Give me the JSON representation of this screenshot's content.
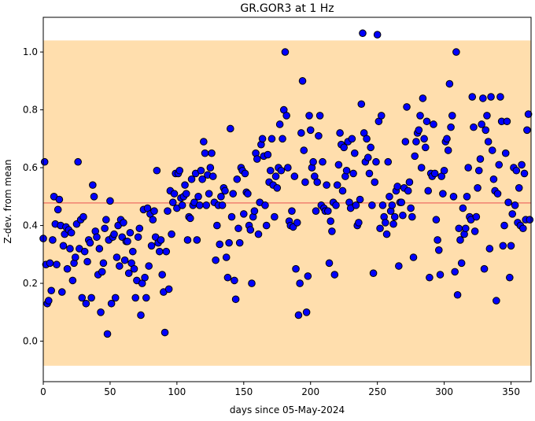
{
  "chart_data": {
    "type": "scatter",
    "title": "GR.GOR3 at 1 Hz",
    "xlabel": "days since 05-May-2024",
    "ylabel": "Z-dev. from mean",
    "xlim": [
      0,
      365
    ],
    "ylim": [
      -0.14,
      1.12
    ],
    "x_ticks": [
      0,
      50,
      100,
      150,
      200,
      250,
      300,
      350
    ],
    "x_tick_labels": [
      "0",
      "50",
      "100",
      "150",
      "200",
      "250",
      "300",
      "350"
    ],
    "y_ticks": [
      0.0,
      0.2,
      0.4,
      0.6,
      0.8,
      1.0
    ],
    "y_tick_labels": [
      "0.0",
      "0.2",
      "0.4",
      "0.6",
      "0.8",
      "1.0"
    ],
    "grid": false,
    "band": {
      "y0": -0.085,
      "y1": 1.04,
      "color": "#ffdead"
    },
    "reference_line": {
      "y": 0.478,
      "color": "#f08070"
    },
    "marker": {
      "fill": "#0000ff",
      "edge": "#000000"
    },
    "points": [
      [
        0,
        0.355
      ],
      [
        1,
        0.62
      ],
      [
        2,
        0.265
      ],
      [
        3,
        0.13
      ],
      [
        4,
        0.14
      ],
      [
        5,
        0.27
      ],
      [
        6,
        0.175
      ],
      [
        7,
        0.35
      ],
      [
        8,
        0.5
      ],
      [
        9,
        0.405
      ],
      [
        10,
        0.265
      ],
      [
        11,
        0.455
      ],
      [
        12,
        0.49
      ],
      [
        13,
        0.4
      ],
      [
        14,
        0.17
      ],
      [
        15,
        0.33
      ],
      [
        16,
        0.37
      ],
      [
        17,
        0.395
      ],
      [
        18,
        0.25
      ],
      [
        19,
        0.385
      ],
      [
        20,
        0.32
      ],
      [
        21,
        0.375
      ],
      [
        22,
        0.21
      ],
      [
        23,
        0.27
      ],
      [
        24,
        0.29
      ],
      [
        25,
        0.405
      ],
      [
        26,
        0.62
      ],
      [
        27,
        0.32
      ],
      [
        28,
        0.42
      ],
      [
        29,
        0.15
      ],
      [
        30,
        0.43
      ],
      [
        31,
        0.31
      ],
      [
        32,
        0.13
      ],
      [
        33,
        0.275
      ],
      [
        34,
        0.35
      ],
      [
        35,
        0.34
      ],
      [
        36,
        0.15
      ],
      [
        37,
        0.54
      ],
      [
        38,
        0.5
      ],
      [
        39,
        0.38
      ],
      [
        40,
        0.36
      ],
      [
        41,
        0.23
      ],
      [
        42,
        0.32
      ],
      [
        43,
        0.1
      ],
      [
        44,
        0.24
      ],
      [
        45,
        0.27
      ],
      [
        46,
        0.39
      ],
      [
        47,
        0.42
      ],
      [
        48,
        0.025
      ],
      [
        49,
        0.35
      ],
      [
        50,
        0.485
      ],
      [
        51,
        0.13
      ],
      [
        52,
        0.36
      ],
      [
        53,
        0.37
      ],
      [
        54,
        0.15
      ],
      [
        55,
        0.29
      ],
      [
        56,
        0.4
      ],
      [
        57,
        0.26
      ],
      [
        58,
        0.42
      ],
      [
        59,
        0.36
      ],
      [
        60,
        0.41
      ],
      [
        61,
        0.28
      ],
      [
        62,
        0.345
      ],
      [
        63,
        0.345
      ],
      [
        64,
        0.235
      ],
      [
        65,
        0.375
      ],
      [
        66,
        0.27
      ],
      [
        67,
        0.31
      ],
      [
        68,
        0.25
      ],
      [
        69,
        0.15
      ],
      [
        70,
        0.21
      ],
      [
        71,
        0.36
      ],
      [
        72,
        0.39
      ],
      [
        73,
        0.09
      ],
      [
        74,
        0.2
      ],
      [
        75,
        0.455
      ],
      [
        76,
        0.22
      ],
      [
        77,
        0.15
      ],
      [
        78,
        0.46
      ],
      [
        79,
        0.26
      ],
      [
        80,
        0.44
      ],
      [
        81,
        0.33
      ],
      [
        82,
        0.42
      ],
      [
        83,
        0.45
      ],
      [
        84,
        0.36
      ],
      [
        85,
        0.59
      ],
      [
        86,
        0.34
      ],
      [
        87,
        0.31
      ],
      [
        88,
        0.35
      ],
      [
        89,
        0.23
      ],
      [
        90,
        0.17
      ],
      [
        91,
        0.03
      ],
      [
        92,
        0.31
      ],
      [
        93,
        0.45
      ],
      [
        94,
        0.18
      ],
      [
        95,
        0.52
      ],
      [
        96,
        0.37
      ],
      [
        97,
        0.48
      ],
      [
        98,
        0.51
      ],
      [
        99,
        0.58
      ],
      [
        100,
        0.46
      ],
      [
        101,
        0.58
      ],
      [
        102,
        0.59
      ],
      [
        103,
        0.495
      ],
      [
        104,
        0.47
      ],
      [
        105,
        0.5
      ],
      [
        106,
        0.54
      ],
      [
        107,
        0.51
      ],
      [
        108,
        0.35
      ],
      [
        109,
        0.43
      ],
      [
        110,
        0.425
      ],
      [
        111,
        0.56
      ],
      [
        112,
        0.47
      ],
      [
        113,
        0.48
      ],
      [
        114,
        0.58
      ],
      [
        115,
        0.35
      ],
      [
        116,
        0.5
      ],
      [
        117,
        0.47
      ],
      [
        118,
        0.59
      ],
      [
        119,
        0.56
      ],
      [
        120,
        0.69
      ],
      [
        121,
        0.65
      ],
      [
        122,
        0.47
      ],
      [
        123,
        0.575
      ],
      [
        124,
        0.51
      ],
      [
        125,
        0.6
      ],
      [
        126,
        0.65
      ],
      [
        127,
        0.57
      ],
      [
        128,
        0.48
      ],
      [
        129,
        0.28
      ],
      [
        130,
        0.4
      ],
      [
        131,
        0.47
      ],
      [
        132,
        0.335
      ],
      [
        133,
        0.5
      ],
      [
        134,
        0.47
      ],
      [
        135,
        0.53
      ],
      [
        136,
        0.52
      ],
      [
        137,
        0.29
      ],
      [
        138,
        0.22
      ],
      [
        139,
        0.34
      ],
      [
        140,
        0.735
      ],
      [
        141,
        0.43
      ],
      [
        142,
        0.51
      ],
      [
        143,
        0.21
      ],
      [
        144,
        0.145
      ],
      [
        145,
        0.56
      ],
      [
        146,
        0.39
      ],
      [
        147,
        0.34
      ],
      [
        148,
        0.6
      ],
      [
        149,
        0.59
      ],
      [
        150,
        0.44
      ],
      [
        151,
        0.58
      ],
      [
        152,
        0.515
      ],
      [
        153,
        0.51
      ],
      [
        154,
        0.4
      ],
      [
        155,
        0.385
      ],
      [
        156,
        0.2
      ],
      [
        157,
        0.43
      ],
      [
        158,
        0.45
      ],
      [
        159,
        0.65
      ],
      [
        160,
        0.63
      ],
      [
        161,
        0.37
      ],
      [
        162,
        0.48
      ],
      [
        163,
        0.68
      ],
      [
        164,
        0.7
      ],
      [
        165,
        0.64
      ],
      [
        166,
        0.47
      ],
      [
        167,
        0.4
      ],
      [
        168,
        0.645
      ],
      [
        169,
        0.55
      ],
      [
        170,
        0.59
      ],
      [
        171,
        0.7
      ],
      [
        172,
        0.54
      ],
      [
        173,
        0.43
      ],
      [
        174,
        0.57
      ],
      [
        175,
        0.53
      ],
      [
        176,
        0.6
      ],
      [
        177,
        0.75
      ],
      [
        178,
        0.59
      ],
      [
        179,
        0.7
      ],
      [
        180,
        0.8
      ],
      [
        181,
        1.0
      ],
      [
        182,
        0.78
      ],
      [
        183,
        0.6
      ],
      [
        184,
        0.415
      ],
      [
        185,
        0.4
      ],
      [
        186,
        0.45
      ],
      [
        187,
        0.395
      ],
      [
        188,
        0.57
      ],
      [
        189,
        0.25
      ],
      [
        190,
        0.41
      ],
      [
        191,
        0.09
      ],
      [
        192,
        0.2
      ],
      [
        193,
        0.72
      ],
      [
        194,
        0.9
      ],
      [
        195,
        0.66
      ],
      [
        196,
        0.55
      ],
      [
        197,
        0.1
      ],
      [
        198,
        0.225
      ],
      [
        199,
        0.78
      ],
      [
        200,
        0.73
      ],
      [
        201,
        0.6
      ],
      [
        202,
        0.62
      ],
      [
        203,
        0.57
      ],
      [
        204,
        0.45
      ],
      [
        205,
        0.55
      ],
      [
        206,
        0.71
      ],
      [
        207,
        0.78
      ],
      [
        208,
        0.47
      ],
      [
        209,
        0.62
      ],
      [
        210,
        0.46
      ],
      [
        211,
        0.45
      ],
      [
        212,
        0.54
      ],
      [
        213,
        0.45
      ],
      [
        214,
        0.27
      ],
      [
        215,
        0.415
      ],
      [
        216,
        0.38
      ],
      [
        217,
        0.48
      ],
      [
        218,
        0.23
      ],
      [
        219,
        0.47
      ],
      [
        220,
        0.54
      ],
      [
        221,
        0.61
      ],
      [
        222,
        0.72
      ],
      [
        223,
        0.68
      ],
      [
        224,
        0.52
      ],
      [
        225,
        0.67
      ],
      [
        226,
        0.57
      ],
      [
        227,
        0.59
      ],
      [
        228,
        0.69
      ],
      [
        229,
        0.48
      ],
      [
        230,
        0.46
      ],
      [
        231,
        0.7
      ],
      [
        232,
        0.58
      ],
      [
        233,
        0.65
      ],
      [
        234,
        0.47
      ],
      [
        235,
        0.4
      ],
      [
        236,
        0.41
      ],
      [
        237,
        0.49
      ],
      [
        238,
        0.82
      ],
      [
        239,
        1.065
      ],
      [
        240,
        0.72
      ],
      [
        241,
        0.62
      ],
      [
        242,
        0.7
      ],
      [
        243,
        0.635
      ],
      [
        244,
        0.58
      ],
      [
        245,
        0.67
      ],
      [
        246,
        0.47
      ],
      [
        247,
        0.235
      ],
      [
        248,
        0.55
      ],
      [
        249,
        0.62
      ],
      [
        250,
        1.06
      ],
      [
        251,
        0.76
      ],
      [
        252,
        0.39
      ],
      [
        253,
        0.78
      ],
      [
        254,
        0.47
      ],
      [
        255,
        0.43
      ],
      [
        256,
        0.41
      ],
      [
        257,
        0.37
      ],
      [
        258,
        0.62
      ],
      [
        259,
        0.5
      ],
      [
        260,
        0.45
      ],
      [
        261,
        0.47
      ],
      [
        262,
        0.405
      ],
      [
        263,
        0.43
      ],
      [
        264,
        0.52
      ],
      [
        265,
        0.535
      ],
      [
        266,
        0.26
      ],
      [
        267,
        0.48
      ],
      [
        268,
        0.48
      ],
      [
        269,
        0.435
      ],
      [
        270,
        0.53
      ],
      [
        271,
        0.69
      ],
      [
        272,
        0.81
      ],
      [
        273,
        0.52
      ],
      [
        274,
        0.55
      ],
      [
        275,
        0.46
      ],
      [
        276,
        0.43
      ],
      [
        277,
        0.29
      ],
      [
        278,
        0.64
      ],
      [
        279,
        0.69
      ],
      [
        280,
        0.72
      ],
      [
        281,
        0.73
      ],
      [
        282,
        0.78
      ],
      [
        283,
        0.6
      ],
      [
        284,
        0.84
      ],
      [
        285,
        0.7
      ],
      [
        286,
        0.67
      ],
      [
        287,
        0.76
      ],
      [
        288,
        0.52
      ],
      [
        289,
        0.22
      ],
      [
        290,
        0.58
      ],
      [
        291,
        0.57
      ],
      [
        292,
        0.75
      ],
      [
        293,
        0.58
      ],
      [
        294,
        0.42
      ],
      [
        295,
        0.35
      ],
      [
        296,
        0.315
      ],
      [
        297,
        0.23
      ],
      [
        298,
        0.57
      ],
      [
        299,
        0.51
      ],
      [
        300,
        0.59
      ],
      [
        301,
        0.69
      ],
      [
        302,
        0.7
      ],
      [
        303,
        0.66
      ],
      [
        304,
        0.89
      ],
      [
        305,
        0.74
      ],
      [
        306,
        0.78
      ],
      [
        307,
        0.5
      ],
      [
        308,
        0.24
      ],
      [
        309,
        1.0
      ],
      [
        310,
        0.16
      ],
      [
        311,
        0.39
      ],
      [
        312,
        0.35
      ],
      [
        313,
        0.27
      ],
      [
        314,
        0.46
      ],
      [
        315,
        0.37
      ],
      [
        316,
        0.39
      ],
      [
        317,
        0.5
      ],
      [
        318,
        0.6
      ],
      [
        319,
        0.43
      ],
      [
        320,
        0.42
      ],
      [
        321,
        0.845
      ],
      [
        322,
        0.74
      ],
      [
        323,
        0.38
      ],
      [
        324,
        0.43
      ],
      [
        325,
        0.53
      ],
      [
        326,
        0.59
      ],
      [
        327,
        0.63
      ],
      [
        328,
        0.75
      ],
      [
        329,
        0.84
      ],
      [
        330,
        0.25
      ],
      [
        331,
        0.73
      ],
      [
        332,
        0.78
      ],
      [
        333,
        0.69
      ],
      [
        334,
        0.32
      ],
      [
        335,
        0.845
      ],
      [
        336,
        0.66
      ],
      [
        337,
        0.56
      ],
      [
        338,
        0.52
      ],
      [
        339,
        0.14
      ],
      [
        340,
        0.51
      ],
      [
        341,
        0.61
      ],
      [
        342,
        0.845
      ],
      [
        343,
        0.76
      ],
      [
        344,
        0.33
      ],
      [
        345,
        0.4
      ],
      [
        346,
        0.65
      ],
      [
        347,
        0.76
      ],
      [
        348,
        0.48
      ],
      [
        349,
        0.22
      ],
      [
        350,
        0.33
      ],
      [
        351,
        0.44
      ],
      [
        352,
        0.6
      ],
      [
        353,
        0.47
      ],
      [
        354,
        0.59
      ],
      [
        355,
        0.41
      ],
      [
        356,
        0.53
      ],
      [
        357,
        0.4
      ],
      [
        358,
        0.61
      ],
      [
        359,
        0.39
      ],
      [
        360,
        0.58
      ],
      [
        361,
        0.42
      ],
      [
        362,
        0.73
      ],
      [
        363,
        0.785
      ],
      [
        364,
        0.42
      ]
    ]
  }
}
